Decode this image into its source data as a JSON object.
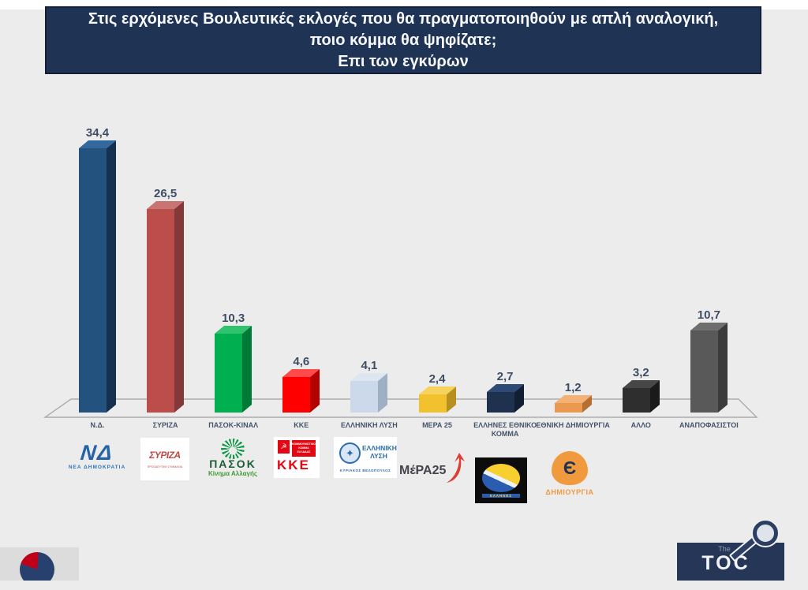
{
  "title": {
    "line1": "Στις ερχόμενες Βουλευτικές εκλογές που θα πραγματοποιηθούν με απλή αναλογική,",
    "line2": "ποιο κόμμα θα ψηφίζατε;",
    "line3": "Επι των εγκύρων"
  },
  "chart_data": {
    "type": "bar",
    "style": "3d-column",
    "title": "Στις ερχόμενες Βουλευτικές εκλογές που θα πραγματοποιηθούν με απλή αναλογική, ποιο κόμμα θα ψηφίζατε; Επι των εγκύρων",
    "categories": [
      "Ν.Δ.",
      "ΣΥΡΙΖΑ",
      "ΠΑΣΟΚ-ΚΙΝΑΛ",
      "ΚΚΕ",
      "ΕΛΛΗΝΙΚΗ ΛΥΣΗ",
      "ΜΕΡΑ 25",
      "ΕΛΛΗΝΕΣ ΕΘΝΙΚΟ ΚΟΜΜΑ",
      "ΕΘΝΙΚΗ ΔΗΜΙΟΥΡΓΙΑ",
      "ΑΛΛΟ",
      "ΑΝΑΠΟΦΑΣΙΣΤΟΙ"
    ],
    "values": [
      34.4,
      26.5,
      10.3,
      4.6,
      4.1,
      2.4,
      2.7,
      1.2,
      3.2,
      10.7
    ],
    "value_labels": [
      "34,4",
      "26,5",
      "10,3",
      "4,6",
      "4,1",
      "2,4",
      "2,7",
      "1,2",
      "3,2",
      "10,7"
    ],
    "colors_front": [
      "#24527f",
      "#bb4e4b",
      "#00b050",
      "#fe0000",
      "#ccd9ea",
      "#f2c12e",
      "#1e3250",
      "#ec9950",
      "#2e2e2e",
      "#595959"
    ],
    "colors_side": [
      "#16314f",
      "#83383a",
      "#007a37",
      "#b30000",
      "#9fb0c4",
      "#b8901f",
      "#121f33",
      "#b56f33",
      "#1a1a1a",
      "#3b3b3b"
    ],
    "colors_top": [
      "#33689c",
      "#c97472",
      "#2fc36e",
      "#ff4a4a",
      "#dde7f2",
      "#f7d35e",
      "#2c4a75",
      "#f3b176",
      "#474747",
      "#6e6e6e"
    ],
    "xlabel": "",
    "ylabel": "",
    "ylim": [
      0,
      36
    ],
    "grid": false,
    "legend": false
  },
  "logos": {
    "nd": {
      "monogram": "ΝΔ",
      "caption": "ΝΕΑ ΔΗΜΟΚΡΑΤΙΑ"
    },
    "syriza": {
      "name": "ΣΥΡΙΖΑ",
      "caption": "ΠΡΟΟΔΕΥΤΙΚΗ ΣΥΜΜΑΧΙΑ"
    },
    "pasok": {
      "name": "ΠΑΣΟΚ",
      "caption": "Κίνημα Αλλαγής"
    },
    "kke": {
      "name": "ΚΚΕ",
      "emblem_glyph": "☭",
      "caption": "ΚΟΜΜΟΥΝΙΣΤΙΚΟ ΚΟΜΜΑ ΕΛΛΑΔΑΣ"
    },
    "elliniki_lysi": {
      "emblem_glyph": "✦",
      "name": "ΕΛΛΗΝΙΚΗ ΛΥΣΗ",
      "caption": "ΚΥΡΙΑΚΟΣ ΒΕΛΟΠΟΥΛΟΣ"
    },
    "mera25": {
      "name": "ΜέΡΑ25"
    },
    "ellines": {
      "name": "ΕΛΛΗΝΕΣ"
    },
    "ethniki_dimiourgia": {
      "symbol": "Є",
      "caption": "ΔΗΜΙΟΥΡΓΙΑ"
    }
  },
  "footer": {
    "toc": {
      "the": "The",
      "main": "TOC"
    }
  }
}
